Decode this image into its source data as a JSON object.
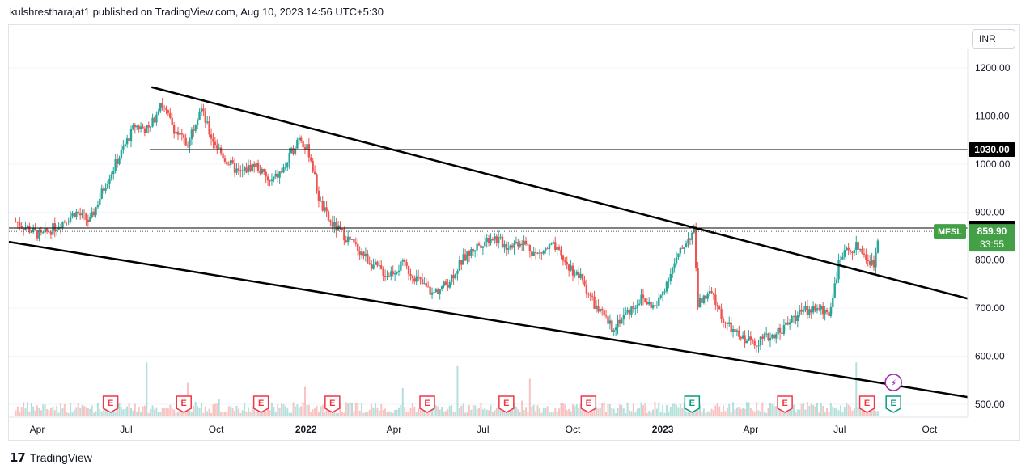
{
  "header": {
    "attribution": "kulshrestharajat1 published on TradingView.com, Aug 10, 2023 14:56 UTC+5:30"
  },
  "currency": "INR",
  "footer": {
    "brand": "TradingView"
  },
  "colors": {
    "up": "#26a69a",
    "down": "#ef5350",
    "line": "#000000",
    "symbol_label_bg": "#43a047",
    "earnings_red": "#f23645",
    "earnings_green": "#089981",
    "dividend_purple": "#9c27b0"
  },
  "chart_data": {
    "type": "candlestick",
    "symbol": "MFSL",
    "last_price": "859.90",
    "countdown": "33:55",
    "line_labels": [
      "1030.00",
      "866.85"
    ],
    "y_ticks": [
      "1200.00",
      "1100.00",
      "1000.00",
      "900.00",
      "800.00",
      "700.00",
      "600.00",
      "500.00"
    ],
    "y_tick_values": [
      1200,
      1100,
      1000,
      900,
      800,
      700,
      600,
      500
    ],
    "ylim": [
      485,
      1255
    ],
    "x_ticks": [
      {
        "label": "Apr",
        "bold": false,
        "date": "2021-04-01"
      },
      {
        "label": "Jul",
        "bold": false,
        "date": "2021-07-01"
      },
      {
        "label": "Oct",
        "bold": false,
        "date": "2021-10-01"
      },
      {
        "label": "2022",
        "bold": true,
        "date": "2022-01-01"
      },
      {
        "label": "Apr",
        "bold": false,
        "date": "2022-04-01"
      },
      {
        "label": "Jul",
        "bold": false,
        "date": "2022-07-01"
      },
      {
        "label": "Oct",
        "bold": false,
        "date": "2022-10-01"
      },
      {
        "label": "2023",
        "bold": true,
        "date": "2023-01-01"
      },
      {
        "label": "Apr",
        "bold": false,
        "date": "2023-04-01"
      },
      {
        "label": "Jul",
        "bold": false,
        "date": "2023-07-01"
      },
      {
        "label": "Oct",
        "bold": false,
        "date": "2023-10-01"
      }
    ],
    "price_path": [
      [
        "2021-03-10",
        880
      ],
      [
        "2021-04-05",
        850
      ],
      [
        "2021-04-20",
        870
      ],
      [
        "2021-05-10",
        900
      ],
      [
        "2021-05-25",
        880
      ],
      [
        "2021-06-10",
        960
      ],
      [
        "2021-06-25",
        1020
      ],
      [
        "2021-07-10",
        1080
      ],
      [
        "2021-07-25",
        1070
      ],
      [
        "2021-08-05",
        1130
      ],
      [
        "2021-08-20",
        1070
      ],
      [
        "2021-09-01",
        1040
      ],
      [
        "2021-09-15",
        1120
      ],
      [
        "2021-09-25",
        1060
      ],
      [
        "2021-10-10",
        1010
      ],
      [
        "2021-10-25",
        980
      ],
      [
        "2021-11-10",
        1000
      ],
      [
        "2021-11-25",
        960
      ],
      [
        "2021-12-10",
        990
      ],
      [
        "2021-12-25",
        1060
      ],
      [
        "2022-01-05",
        1020
      ],
      [
        "2022-01-15",
        920
      ],
      [
        "2022-01-25",
        880
      ],
      [
        "2022-02-10",
        850
      ],
      [
        "2022-02-25",
        820
      ],
      [
        "2022-03-10",
        790
      ],
      [
        "2022-03-25",
        770
      ],
      [
        "2022-04-10",
        790
      ],
      [
        "2022-04-25",
        760
      ],
      [
        "2022-05-10",
        730
      ],
      [
        "2022-05-25",
        750
      ],
      [
        "2022-06-10",
        800
      ],
      [
        "2022-06-25",
        830
      ],
      [
        "2022-07-10",
        850
      ],
      [
        "2022-07-25",
        830
      ],
      [
        "2022-08-10",
        840
      ],
      [
        "2022-08-25",
        810
      ],
      [
        "2022-09-10",
        830
      ],
      [
        "2022-09-25",
        790
      ],
      [
        "2022-10-10",
        760
      ],
      [
        "2022-10-25",
        700
      ],
      [
        "2022-11-10",
        660
      ],
      [
        "2022-11-25",
        690
      ],
      [
        "2022-12-10",
        720
      ],
      [
        "2022-12-25",
        700
      ],
      [
        "2023-01-10",
        780
      ],
      [
        "2023-01-25",
        840
      ],
      [
        "2023-02-02",
        860
      ],
      [
        "2023-02-06",
        710
      ],
      [
        "2023-02-20",
        730
      ],
      [
        "2023-03-05",
        670
      ],
      [
        "2023-03-20",
        640
      ],
      [
        "2023-04-05",
        630
      ],
      [
        "2023-04-20",
        640
      ],
      [
        "2023-05-05",
        660
      ],
      [
        "2023-05-20",
        690
      ],
      [
        "2023-06-05",
        700
      ],
      [
        "2023-06-20",
        690
      ],
      [
        "2023-07-01",
        800
      ],
      [
        "2023-07-10",
        820
      ],
      [
        "2023-07-20",
        830
      ],
      [
        "2023-07-30",
        800
      ],
      [
        "2023-08-05",
        790
      ],
      [
        "2023-08-10",
        860
      ]
    ],
    "trendlines": [
      {
        "name": "upper-trendline",
        "from": [
          "2021-07-27",
          1160
        ],
        "to": [
          "2023-11-09",
          720
        ]
      },
      {
        "name": "lower-trendline",
        "from": [
          "2021-03-03",
          838
        ],
        "to": [
          "2023-11-09",
          515
        ]
      }
    ],
    "horizontal_lines": [
      {
        "name": "resistance-1030",
        "value": 1030,
        "from": "2021-07-25"
      },
      {
        "name": "level-866",
        "value": 866.85,
        "from": "2021-03-03"
      }
    ],
    "earnings_markers": [
      {
        "date": "2021-06-15",
        "kind": "red",
        "label": "E"
      },
      {
        "date": "2021-08-29",
        "kind": "red",
        "label": "E"
      },
      {
        "date": "2021-11-16",
        "kind": "red",
        "label": "E"
      },
      {
        "date": "2022-01-28",
        "kind": "red",
        "label": "E"
      },
      {
        "date": "2022-05-05",
        "kind": "red",
        "label": "E"
      },
      {
        "date": "2022-07-25",
        "kind": "red",
        "label": "E"
      },
      {
        "date": "2022-10-17",
        "kind": "red",
        "label": "E"
      },
      {
        "date": "2023-01-31",
        "kind": "green",
        "label": "E"
      },
      {
        "date": "2023-05-06",
        "kind": "red",
        "label": "E"
      },
      {
        "date": "2023-07-29",
        "kind": "red",
        "label": "E"
      },
      {
        "date": "2023-08-25",
        "kind": "green",
        "label": "E"
      }
    ],
    "dividend_marker": {
      "date": "2023-08-25",
      "label": "⚡"
    }
  }
}
